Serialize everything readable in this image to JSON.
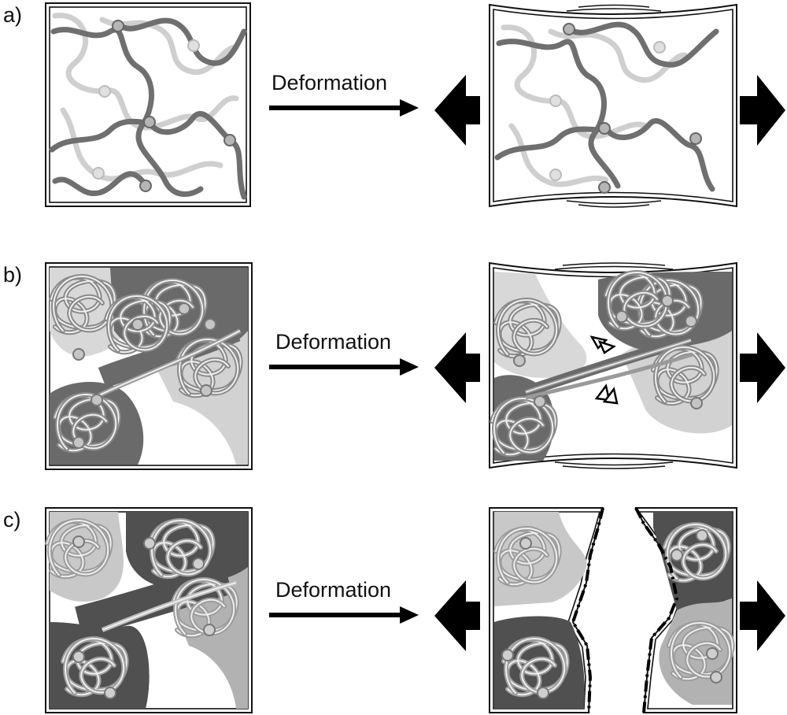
{
  "rows": [
    {
      "label": "a)",
      "caption": "Deformation",
      "state": "single-network"
    },
    {
      "label": "b)",
      "caption": "Deformation",
      "state": "clustered-network-stretched"
    },
    {
      "label": "c)",
      "caption": "Deformation",
      "state": "clustered-network-fractured"
    }
  ],
  "colors": {
    "frame": "#111111",
    "chain_dark": "#6e6e6e",
    "chain_light": "#c6c6c6",
    "domain_dark": "#5a5a5a",
    "domain_mid": "#a9a9a9",
    "domain_light": "#d8d8d8",
    "node_fill": "#b8b8b8"
  },
  "icons": [
    "left-pull-arrow-icon",
    "right-pull-arrow-icon",
    "deformation-arrow-icon",
    "void-marker-icon"
  ]
}
